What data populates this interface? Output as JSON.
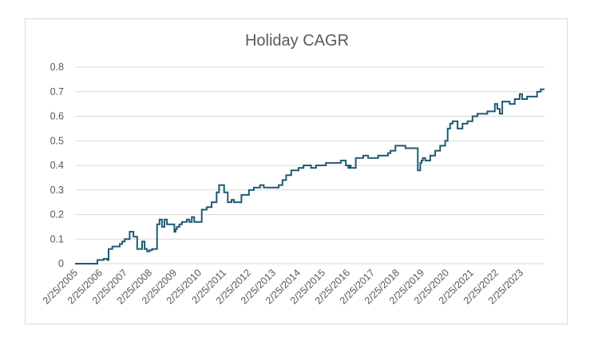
{
  "chart_data": {
    "type": "line",
    "title": "Holiday CAGR",
    "xlabel": "",
    "ylabel": "",
    "ylim": [
      0,
      0.8
    ],
    "y_ticks": [
      "0",
      "0.1",
      "0.2",
      "0.3",
      "0.4",
      "0.5",
      "0.6",
      "0.7",
      "0.8"
    ],
    "x_ticks": [
      "2/25/2005",
      "2/25/2006",
      "2/25/2007",
      "2/25/2008",
      "2/25/2009",
      "2/25/2010",
      "2/25/2011",
      "2/25/2012",
      "2/25/2013",
      "2/25/2014",
      "2/25/2015",
      "2/25/2016",
      "2/25/2017",
      "2/25/2018",
      "2/25/2019",
      "2/25/2020",
      "2/25/2021",
      "2/25/2022",
      "2/25/2023"
    ],
    "grid": true,
    "legend": "none",
    "line_color": "#1f5a73",
    "x": [
      2005.0,
      2005.8,
      2005.9,
      2006.0,
      2006.15,
      2006.2,
      2006.3,
      2006.35,
      2006.5,
      2006.6,
      2006.8,
      2006.9,
      2007.0,
      2007.1,
      2007.2,
      2007.35,
      2007.5,
      2007.7,
      2007.8,
      2007.9,
      2008.0,
      2008.1,
      2008.2,
      2008.3,
      2008.4,
      2008.5,
      2008.6,
      2008.7,
      2009.0,
      2009.05,
      2009.1,
      2009.15,
      2009.2,
      2009.3,
      2009.4,
      2009.5,
      2009.6,
      2009.7,
      2009.8,
      2010.0,
      2010.1,
      2010.3,
      2010.5,
      2010.7,
      2010.8,
      2011.0,
      2011.15,
      2011.3,
      2011.4,
      2011.6,
      2011.7,
      2011.8,
      2011.9,
      2012.0,
      2012.2,
      2012.3,
      2012.45,
      2012.6,
      2012.8,
      2013.0,
      2013.2,
      2013.35,
      2013.5,
      2013.7,
      2014.0,
      2014.1,
      2014.2,
      2014.35,
      2014.5,
      2014.7,
      2014.9,
      2015.0,
      2015.1,
      2015.3,
      2015.5,
      2015.7,
      2015.9,
      2016.0,
      2016.05,
      2016.1,
      2016.3,
      2016.5,
      2016.6,
      2016.8,
      2017.0,
      2017.2,
      2017.4,
      2017.6,
      2017.7,
      2017.9,
      2018.0,
      2018.1,
      2018.3,
      2018.5,
      2018.8,
      2018.9,
      2018.95,
      2019.0,
      2019.1,
      2019.3,
      2019.5,
      2019.7,
      2019.9,
      2020.0,
      2020.1,
      2020.2,
      2020.4,
      2020.6,
      2020.8,
      2021.0,
      2021.2,
      2021.4,
      2021.6,
      2021.9,
      2022.0,
      2022.1,
      2022.2,
      2022.5,
      2022.7,
      2022.9,
      2023.0,
      2023.2,
      2023.4,
      2023.6,
      2023.75,
      2023.9
    ],
    "values": [
      0.0,
      0.0,
      0.015,
      0.015,
      0.02,
      0.02,
      0.015,
      0.06,
      0.07,
      0.07,
      0.08,
      0.09,
      0.1,
      0.1,
      0.13,
      0.11,
      0.06,
      0.09,
      0.06,
      0.05,
      0.055,
      0.06,
      0.06,
      0.16,
      0.18,
      0.15,
      0.18,
      0.16,
      0.13,
      0.14,
      0.15,
      0.15,
      0.16,
      0.17,
      0.17,
      0.18,
      0.17,
      0.19,
      0.17,
      0.17,
      0.22,
      0.23,
      0.25,
      0.29,
      0.32,
      0.29,
      0.25,
      0.26,
      0.25,
      0.25,
      0.28,
      0.28,
      0.28,
      0.3,
      0.31,
      0.31,
      0.32,
      0.31,
      0.31,
      0.31,
      0.32,
      0.34,
      0.36,
      0.38,
      0.39,
      0.39,
      0.4,
      0.4,
      0.39,
      0.4,
      0.4,
      0.4,
      0.41,
      0.41,
      0.41,
      0.42,
      0.4,
      0.39,
      0.4,
      0.39,
      0.43,
      0.43,
      0.44,
      0.43,
      0.43,
      0.44,
      0.44,
      0.45,
      0.46,
      0.48,
      0.48,
      0.48,
      0.47,
      0.47,
      0.38,
      0.41,
      0.42,
      0.43,
      0.42,
      0.44,
      0.46,
      0.48,
      0.5,
      0.55,
      0.57,
      0.58,
      0.55,
      0.57,
      0.58,
      0.6,
      0.61,
      0.61,
      0.62,
      0.65,
      0.63,
      0.61,
      0.66,
      0.65,
      0.67,
      0.69,
      0.67,
      0.68,
      0.68,
      0.7,
      0.71,
      0.71
    ]
  }
}
